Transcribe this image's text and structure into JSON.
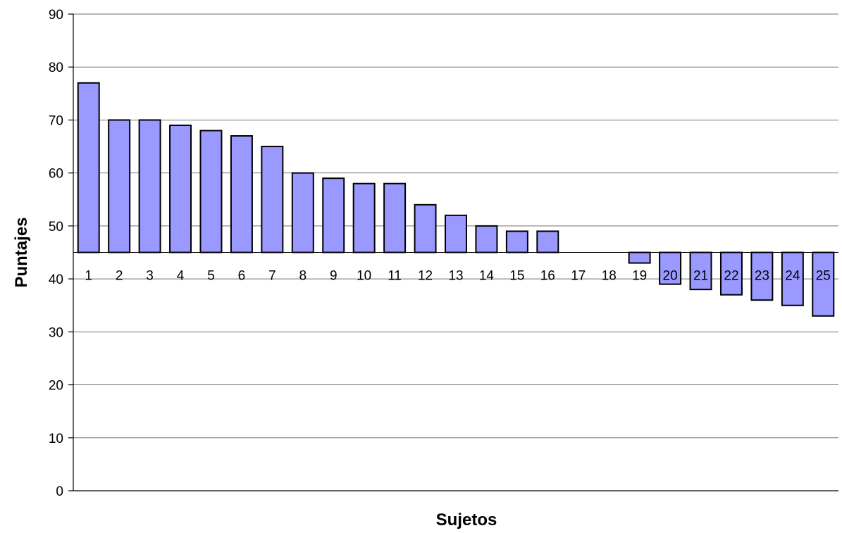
{
  "chart_data": {
    "type": "bar",
    "title": "",
    "xlabel": "Sujetos",
    "ylabel": "Puntajes",
    "baseline": 45,
    "ylim": [
      0,
      90
    ],
    "yticks": [
      "0",
      "10",
      "20",
      "30",
      "40",
      "50",
      "60",
      "70",
      "80",
      "90"
    ],
    "grid": true,
    "legend": "none",
    "bar_color": "#9999ff",
    "categories": [
      "1",
      "2",
      "3",
      "4",
      "5",
      "6",
      "7",
      "8",
      "9",
      "10",
      "11",
      "12",
      "13",
      "14",
      "15",
      "16",
      "17",
      "18",
      "19",
      "20",
      "21",
      "22",
      "23",
      "24",
      "25"
    ],
    "values": [
      77,
      70,
      70,
      69,
      68,
      67,
      65,
      60,
      59,
      58,
      58,
      54,
      52,
      50,
      49,
      49,
      45,
      45,
      43,
      39,
      38,
      37,
      36,
      35,
      33
    ]
  }
}
